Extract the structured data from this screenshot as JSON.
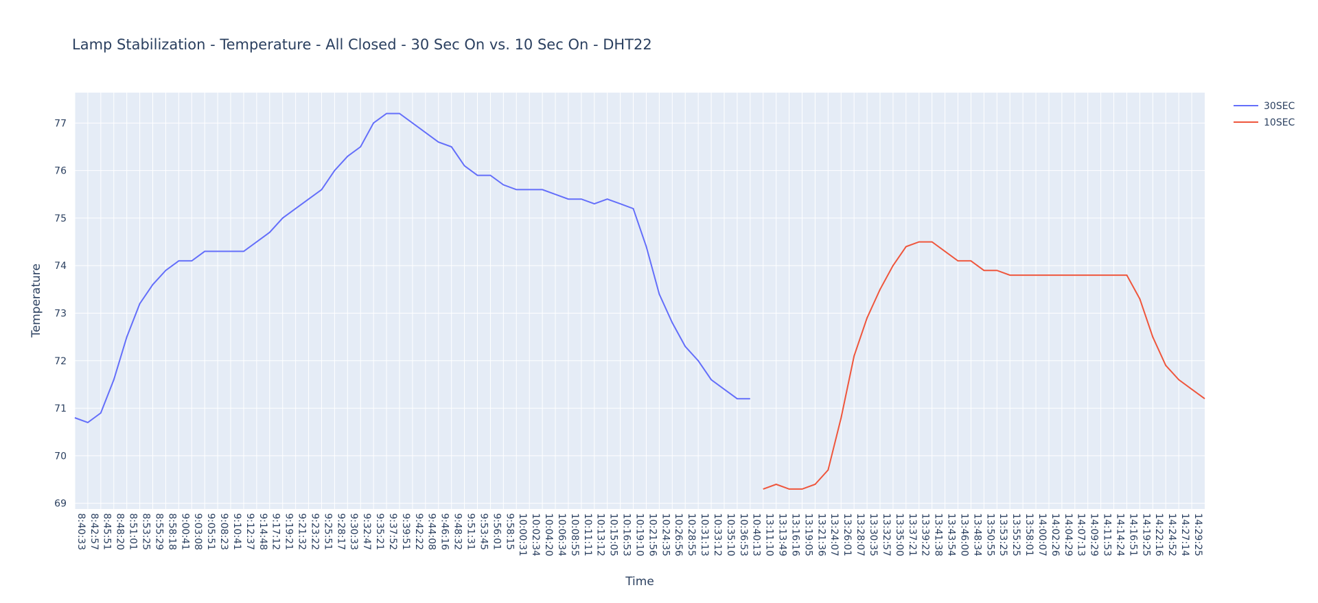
{
  "chart_data": {
    "type": "line",
    "title": "Lamp Stabilization - Temperature - All Closed - 30 Sec On vs. 10 Sec On - DHT22",
    "x_label": "Time",
    "y_label": "Temperature",
    "categories": [
      "8:40:33",
      "8:42:57",
      "8:45:51",
      "8:48:20",
      "8:51:01",
      "8:53:25",
      "8:55:29",
      "8:58:18",
      "9:00:41",
      "9:03:08",
      "9:05:51",
      "9:08:23",
      "9:10:41",
      "9:12:37",
      "9:14:48",
      "9:17:12",
      "9:19:21",
      "9:21:32",
      "9:23:22",
      "9:25:51",
      "9:28:17",
      "9:30:33",
      "9:32:47",
      "9:35:21",
      "9:37:52",
      "9:39:51",
      "9:42:22",
      "9:44:08",
      "9:46:16",
      "9:48:32",
      "9:51:31",
      "9:53:45",
      "9:56:01",
      "9:58:15",
      "10:00:31",
      "10:02:34",
      "10:04:20",
      "10:06:34",
      "10:08:55",
      "10:11:11",
      "10:13:12",
      "10:15:05",
      "10:16:53",
      "10:19:10",
      "10:21:56",
      "10:24:35",
      "10:26:56",
      "10:28:55",
      "10:31:13",
      "10:33:12",
      "10:35:10",
      "10:36:53",
      "10:40:13",
      "13:11:10",
      "13:13:49",
      "13:16:16",
      "13:19:05",
      "13:21:36",
      "13:24:07",
      "13:26:01",
      "13:28:07",
      "13:30:35",
      "13:32:57",
      "13:35:00",
      "13:37:21",
      "13:39:22",
      "13:41:38",
      "13:43:54",
      "13:46:00",
      "13:48:34",
      "13:50:55",
      "13:53:25",
      "13:55:25",
      "13:58:01",
      "14:00:07",
      "14:02:26",
      "14:04:29",
      "14:07:13",
      "14:09:29",
      "14:11:53",
      "14:14:24",
      "14:16:51",
      "14:19:25",
      "14:22:16",
      "14:24:52",
      "14:27:14",
      "14:29:25",
      null
    ],
    "series": [
      {
        "name": "30SEC",
        "color": "#636efa",
        "values": [
          70.8,
          70.7,
          70.9,
          71.6,
          72.5,
          73.2,
          73.6,
          73.9,
          74.1,
          74.1,
          74.3,
          74.3,
          74.3,
          74.3,
          74.5,
          74.7,
          75.0,
          75.2,
          75.4,
          75.6,
          76.0,
          76.3,
          76.5,
          77.0,
          77.2,
          77.2,
          77.0,
          76.8,
          76.6,
          76.5,
          76.1,
          75.9,
          75.9,
          75.7,
          75.6,
          75.6,
          75.6,
          75.5,
          75.4,
          75.4,
          75.3,
          75.4,
          75.3,
          75.2,
          74.4,
          73.4,
          72.8,
          72.3,
          72.0,
          71.6,
          71.4,
          71.2,
          71.2,
          null,
          null,
          null,
          null,
          null,
          null,
          null,
          null,
          null,
          null,
          null,
          null,
          null,
          null,
          null,
          null,
          null,
          null,
          null,
          null,
          null,
          null,
          null,
          null,
          null,
          null,
          null,
          null,
          null,
          null,
          null,
          null,
          null,
          null,
          null
        ]
      },
      {
        "name": "10SEC",
        "color": "#ef553b",
        "values": [
          null,
          null,
          null,
          null,
          null,
          null,
          null,
          null,
          null,
          null,
          null,
          null,
          null,
          null,
          null,
          null,
          null,
          null,
          null,
          null,
          null,
          null,
          null,
          null,
          null,
          null,
          null,
          null,
          null,
          null,
          null,
          null,
          null,
          null,
          null,
          null,
          null,
          null,
          null,
          null,
          null,
          null,
          null,
          null,
          null,
          null,
          null,
          null,
          null,
          null,
          null,
          null,
          null,
          69.3,
          69.4,
          69.3,
          69.3,
          69.4,
          69.7,
          70.8,
          72.1,
          72.9,
          73.5,
          74.0,
          74.4,
          74.5,
          74.5,
          74.3,
          74.1,
          74.1,
          73.9,
          73.9,
          73.8,
          73.8,
          73.8,
          73.8,
          73.8,
          73.8,
          73.8,
          73.8,
          73.8,
          73.8,
          73.3,
          72.5,
          71.9,
          71.6,
          71.4,
          71.2
        ]
      }
    ],
    "ylim": [
      68.88,
      77.64
    ],
    "yticks": [
      69,
      70,
      71,
      72,
      73,
      74,
      75,
      76,
      77
    ],
    "grid": true
  }
}
